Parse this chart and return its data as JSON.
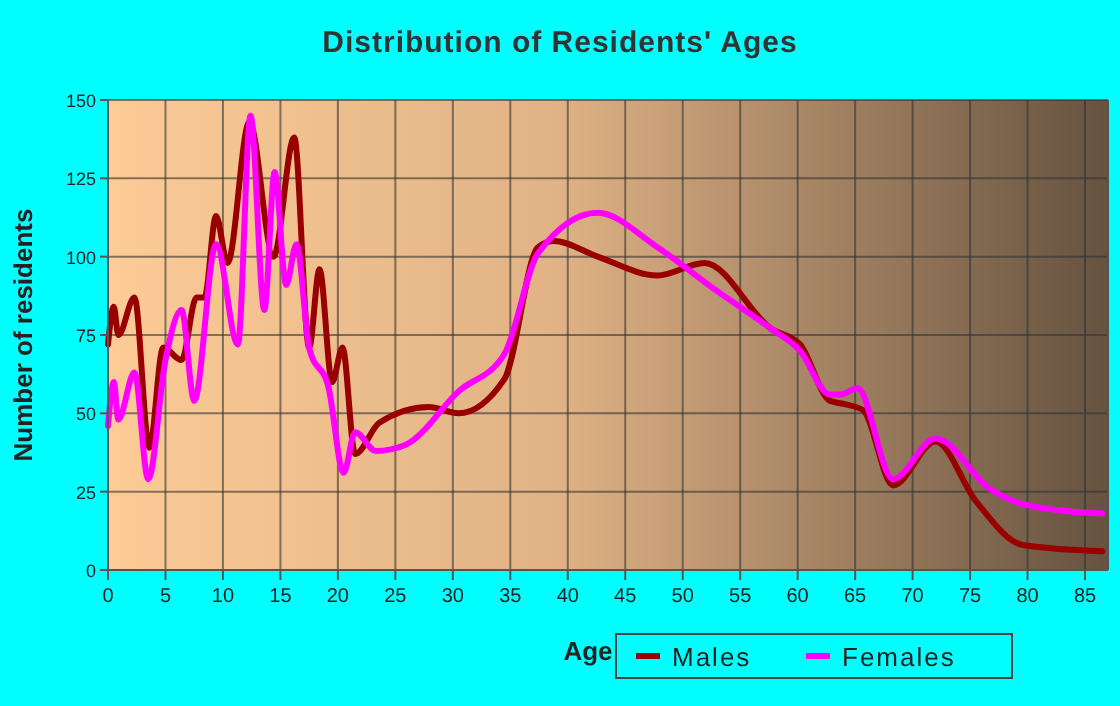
{
  "chart_data": {
    "type": "line",
    "title": "Distribution of Residents' Ages",
    "xlabel": "Age",
    "ylabel": "Number of residents",
    "xlim": [
      0,
      87
    ],
    "ylim": [
      0,
      150
    ],
    "xticks": [
      0,
      5,
      10,
      15,
      20,
      25,
      30,
      35,
      40,
      45,
      50,
      55,
      60,
      65,
      70,
      75,
      80,
      85
    ],
    "yticks": [
      0,
      25,
      50,
      75,
      100,
      125,
      150
    ],
    "grid": true,
    "legend": "bottom",
    "line_style": "solid",
    "marker": "none",
    "series": [
      {
        "name": "Males",
        "color": "#990000",
        "x": [
          0,
          0.5,
          0.9,
          2.3,
          3.6,
          4.8,
          6.4,
          7.7,
          8.4,
          9.4,
          10.4,
          12.3,
          14.4,
          16.2,
          17.5,
          18.4,
          19.5,
          20.4,
          21.5,
          23.6,
          27.9,
          30.5,
          34.5,
          37.4,
          38.8,
          42.6,
          47.8,
          51.9,
          57.7,
          60.2,
          62.8,
          64,
          65.7,
          68.3,
          72,
          75.5,
          79.6,
          86.5
        ],
        "values": [
          72,
          84,
          75,
          87,
          39,
          71,
          67,
          87,
          87,
          113,
          98,
          143,
          100,
          138,
          71,
          96,
          60,
          71,
          37,
          47,
          52,
          50,
          61,
          103,
          105,
          100,
          94,
          98,
          77,
          72,
          54,
          53,
          51,
          27,
          41,
          22,
          8,
          6
        ]
      },
      {
        "name": "Females",
        "color": "#ff00ff",
        "x": [
          0,
          0.5,
          0.9,
          2.3,
          3.5,
          5,
          6.4,
          7.5,
          9.4,
          11.3,
          12.4,
          13.6,
          14.5,
          15.5,
          16.4,
          17.5,
          19.2,
          20.5,
          21.5,
          23.3,
          25.9,
          30.5,
          34.5,
          37.4,
          42.6,
          47.8,
          53,
          57.7,
          60.2,
          62.8,
          63.7,
          65.2,
          68.3,
          72,
          76.7,
          79.6,
          86.5
        ],
        "values": [
          46,
          60,
          48,
          63,
          29,
          67,
          83,
          54,
          104,
          72,
          145,
          83,
          127,
          91,
          104,
          71,
          58,
          31,
          44,
          38,
          40,
          57,
          69,
          101,
          114,
          103,
          89,
          77,
          70,
          56,
          56,
          58,
          29,
          42,
          26,
          21,
          18
        ]
      }
    ]
  }
}
